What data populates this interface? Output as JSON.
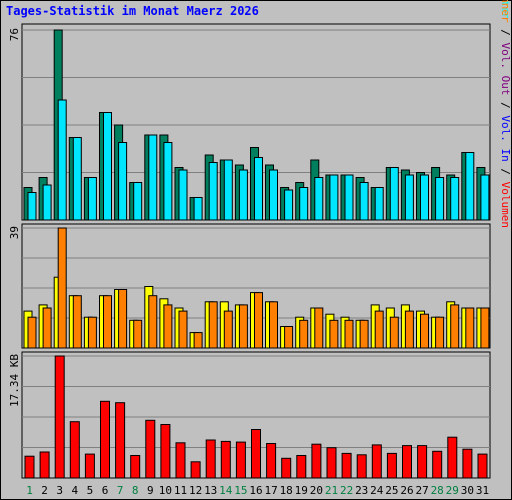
{
  "chart_data": {
    "type": "bar",
    "title": "Tages-Statistik im Monat Maerz 2026",
    "categories": [
      "1",
      "2",
      "3",
      "4",
      "5",
      "6",
      "7",
      "8",
      "9",
      "10",
      "11",
      "12",
      "13",
      "14",
      "15",
      "16",
      "17",
      "18",
      "19",
      "20",
      "21",
      "22",
      "23",
      "24",
      "25",
      "26",
      "27",
      "28",
      "29",
      "30",
      "31"
    ],
    "weekend_days": [
      "1",
      "7",
      "8",
      "14",
      "15",
      "21",
      "22",
      "28",
      "29"
    ],
    "colors": {
      "title": "#0000ff",
      "plot_bg": "#c0c0c0",
      "grid": "#808080",
      "weekday_label": "#000000",
      "weekend_label": "#008040",
      "anfragen": "#007f5f",
      "dateien": "#00e6ff",
      "seiten": "#00ffff",
      "besuche": "#ffff00",
      "rechner": "#ff8000",
      "vol_in": "#0000ff",
      "vol_out": "#800080",
      "volumen": "#ff0000"
    },
    "panels": [
      {
        "id": "top",
        "ymax": 76,
        "ymax_label": "76",
        "series": [
          {
            "name": "Anfragen",
            "color_key": "anfragen",
            "values": [
              13,
              17,
              76,
              33,
              17,
              43,
              38,
              15,
              34,
              34,
              21,
              9,
              26,
              24,
              22,
              29,
              22,
              13,
              15,
              24,
              18,
              18,
              17,
              13,
              21,
              20,
              19,
              21,
              18,
              27,
              21
            ]
          },
          {
            "name": "Dateien",
            "color_key": "dateien",
            "values": [
              11,
              14,
              48,
              33,
              17,
              43,
              31,
              15,
              34,
              31,
              20,
              9,
              23,
              24,
              20,
              25,
              20,
              12,
              13,
              17,
              18,
              18,
              15,
              13,
              21,
              18,
              18,
              17,
              17,
              27,
              18
            ]
          },
          {
            "name": "Seiten",
            "color_key": "seiten",
            "values": [
              0,
              0,
              0,
              0,
              0,
              0,
              0,
              0,
              0,
              0,
              0,
              0,
              0,
              0,
              0,
              0,
              0,
              0,
              0,
              0,
              0,
              0,
              0,
              0,
              0,
              0,
              0,
              0,
              0,
              0,
              0
            ]
          }
        ],
        "right_label": [
          {
            "text": "Anfragen",
            "color_key": "anfragen"
          },
          {
            "text": " / ",
            "color_key": "weekday_label"
          },
          {
            "text": "Dateien",
            "color_key": "dateien"
          },
          {
            "text": " / ",
            "color_key": "weekday_label"
          },
          {
            "text": "Seiten",
            "color_key": "seiten"
          }
        ]
      },
      {
        "id": "middle",
        "ymax": 39,
        "ymax_label": "39",
        "series": [
          {
            "name": "Besuche",
            "color_key": "besuche",
            "values": [
              12,
              14,
              23,
              17,
              10,
              17,
              19,
              9,
              20,
              16,
              13,
              5,
              15,
              15,
              14,
              18,
              15,
              7,
              10,
              13,
              11,
              10,
              9,
              14,
              13,
              14,
              12,
              10,
              15,
              13,
              13
            ]
          },
          {
            "name": "Rechner",
            "color_key": "rechner",
            "values": [
              10,
              13,
              39,
              17,
              10,
              17,
              19,
              9,
              17,
              14,
              12,
              5,
              15,
              12,
              14,
              18,
              15,
              7,
              9,
              13,
              9,
              9,
              9,
              12,
              10,
              12,
              11,
              10,
              14,
              13,
              13
            ]
          }
        ],
        "right_label": [
          {
            "text": "Besuche",
            "color_key": "besuche"
          },
          {
            "text": " / ",
            "color_key": "weekday_label"
          },
          {
            "text": "Rechner",
            "color_key": "rechner"
          },
          {
            "text": " / ",
            "color_key": "weekday_label"
          },
          {
            "text": "Vol. Out",
            "color_key": "vol_out"
          },
          {
            "text": " / ",
            "color_key": "weekday_label"
          },
          {
            "text": "Vol. In",
            "color_key": "vol_in"
          },
          {
            "text": " / ",
            "color_key": "weekday_label"
          },
          {
            "text": "Volumen",
            "color_key": "volumen"
          }
        ]
      },
      {
        "id": "bottom",
        "ymax": 17.34,
        "ymax_label": "17.34 KB",
        "series": [
          {
            "name": "Volumen",
            "color_key": "volumen",
            "values": [
              3.1,
              3.7,
              17.34,
              8.0,
              3.4,
              10.9,
              10.7,
              3.2,
              8.2,
              7.6,
              5.0,
              2.3,
              5.4,
              5.2,
              5.1,
              6.9,
              4.9,
              2.8,
              3.2,
              4.8,
              4.3,
              3.5,
              3.3,
              4.7,
              3.5,
              4.6,
              4.6,
              3.8,
              5.8,
              4.1,
              3.4
            ]
          }
        ]
      }
    ]
  }
}
